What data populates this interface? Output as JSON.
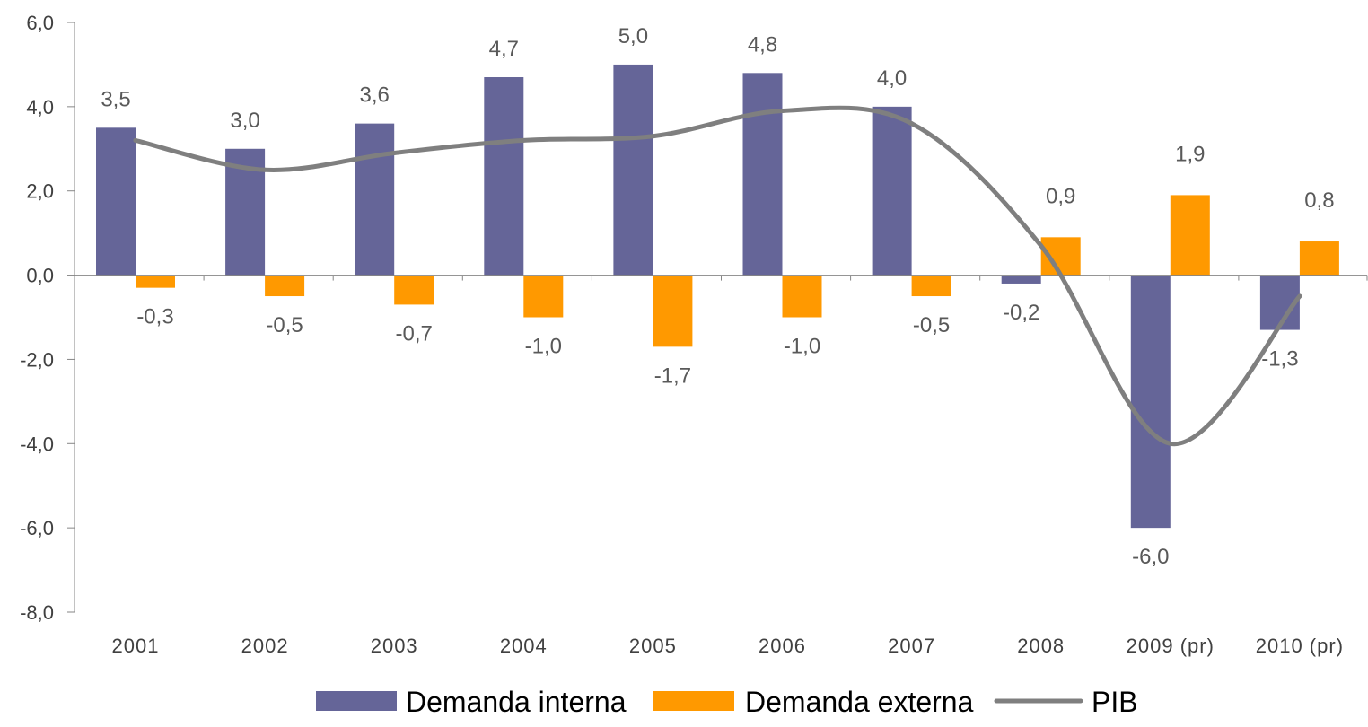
{
  "chart_data": {
    "type": "bar",
    "categories": [
      "2001",
      "2002",
      "2003",
      "2004",
      "2005",
      "2006",
      "2007",
      "2008",
      "2009 (pr)",
      "2010 (pr)"
    ],
    "series": [
      {
        "name": "Demanda interna",
        "type": "bar",
        "color": "#656598",
        "values": [
          3.5,
          3.0,
          3.6,
          4.7,
          5.0,
          4.8,
          4.0,
          -0.2,
          -6.0,
          -1.3
        ],
        "labels": [
          "3,5",
          "3,0",
          "3,6",
          "4,7",
          "5,0",
          "4,8",
          "4,0",
          "-0,2",
          "-6,0",
          "-1,3"
        ]
      },
      {
        "name": "Demanda externa",
        "type": "bar",
        "color": "#ff9900",
        "values": [
          -0.3,
          -0.5,
          -0.7,
          -1.0,
          -1.7,
          -1.0,
          -0.5,
          0.9,
          1.9,
          0.8
        ],
        "labels": [
          "-0,3",
          "-0,5",
          "-0,7",
          "-1,0",
          "-1,7",
          "-1,0",
          "-0,5",
          "0,9",
          "1,9",
          "0,8"
        ]
      },
      {
        "name": "PIB",
        "type": "line",
        "color": "#7f7f7f",
        "values": [
          3.2,
          2.5,
          2.9,
          3.2,
          3.3,
          3.9,
          3.6,
          0.7,
          -4.0,
          -0.5
        ]
      }
    ],
    "y_ticks": [
      "6,0",
      "4,0",
      "2,0",
      "0,0",
      "-2,0",
      "-4,0",
      "-6,0",
      "-8,0"
    ],
    "ylim": [
      -8,
      6
    ],
    "y_step": 2,
    "title": "",
    "xlabel": "",
    "ylabel": "",
    "grid": false,
    "legend_position": "bottom"
  }
}
